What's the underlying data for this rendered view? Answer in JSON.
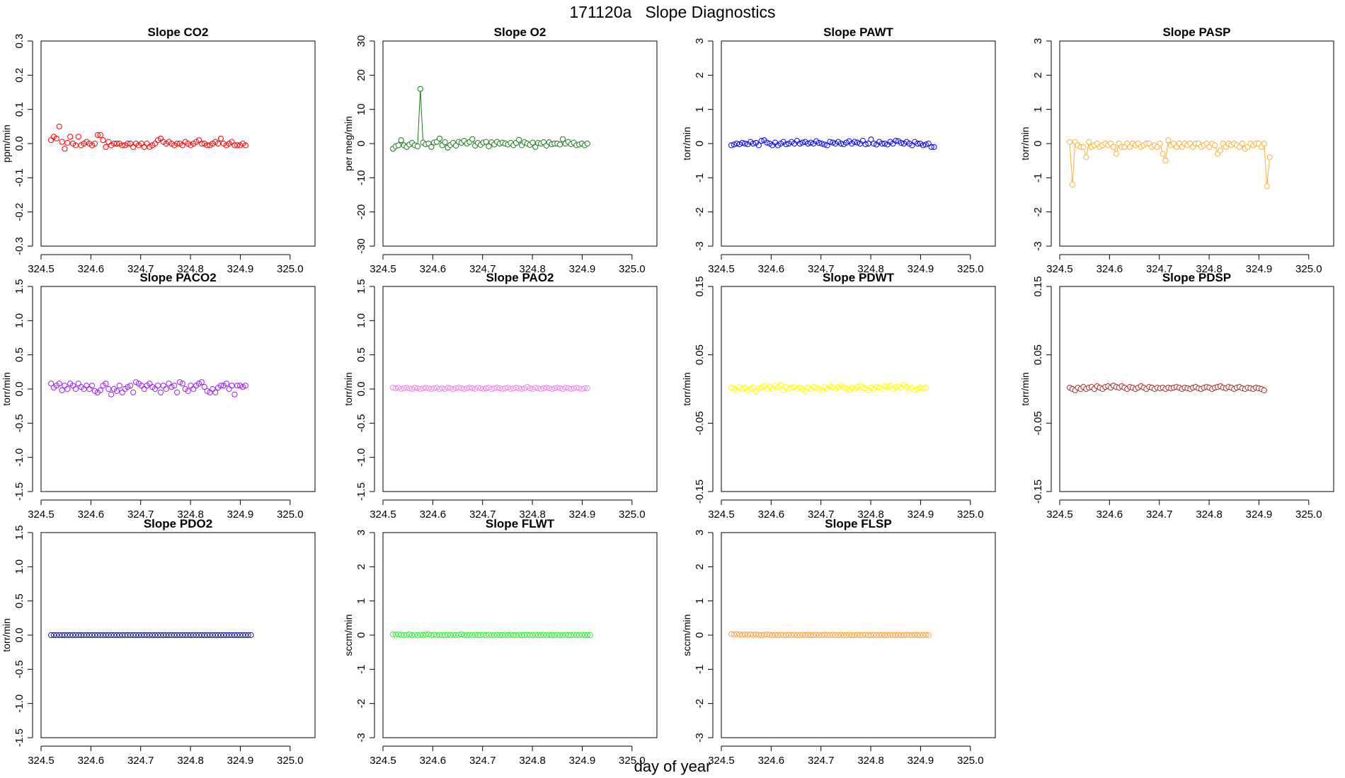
{
  "title": "171120a   Slope Diagnostics",
  "xlabel": "day of year",
  "chart_data": [
    {
      "type": "scatter",
      "title": "Slope CO2",
      "ylabel": "ppm/min",
      "color": "#ff0000",
      "xlim": [
        324.5,
        325.05
      ],
      "ylim": [
        -0.3,
        0.3
      ],
      "xticks": [
        324.5,
        324.6,
        324.7,
        324.8,
        324.9,
        325.0
      ],
      "xtick_labels": [
        "324.5",
        "324.6",
        "324.7",
        "324.8",
        "324.9",
        "325.0"
      ],
      "yticks": [
        -0.3,
        -0.2,
        -0.1,
        0.0,
        0.1,
        0.2,
        0.3
      ],
      "ytick_labels": [
        "-0.3",
        "-0.2",
        "-0.1",
        "0.0",
        "0.1",
        "0.2",
        "0.3"
      ],
      "connect": false,
      "x_start": 324.52,
      "x_step": 0.0055,
      "y": [
        0.01,
        0.02,
        0.015,
        0.05,
        0.005,
        -0.015,
        0.002,
        0.02,
        0.0,
        -0.005,
        0.02,
        -0.005,
        0.0,
        0.005,
        0.0,
        -0.005,
        0.0,
        0.025,
        0.025,
        0.01,
        -0.01,
        0.005,
        -0.005,
        0.0,
        0.0,
        0.0,
        -0.005,
        -0.005,
        0.0,
        0.0,
        -0.01,
        0.0,
        -0.005,
        0.0,
        -0.01,
        0.0,
        -0.01,
        -0.005,
        0.0,
        0.01,
        0.015,
        0.005,
        0.0,
        0.005,
        0.0,
        -0.005,
        0.0,
        0.0,
        -0.005,
        0.005,
        0.0,
        -0.005,
        0.0,
        0.005,
        0.01,
        0.0,
        0.0,
        -0.005,
        -0.005,
        0.0,
        0.005,
        0.0,
        0.015,
        0.0,
        -0.005,
        0.0,
        0.005,
        -0.005,
        -0.005,
        -0.005,
        0.0,
        -0.005
      ]
    },
    {
      "type": "scatter",
      "title": "Slope O2",
      "ylabel": "per meg/min",
      "color": "#1a7a1a",
      "xlim": [
        324.5,
        325.05
      ],
      "ylim": [
        -30,
        30
      ],
      "xticks": [
        324.5,
        324.6,
        324.7,
        324.8,
        324.9,
        325.0
      ],
      "xtick_labels": [
        "324.5",
        "324.6",
        "324.7",
        "324.8",
        "324.9",
        "325.0"
      ],
      "yticks": [
        -30,
        -20,
        -10,
        0,
        10,
        20,
        30
      ],
      "ytick_labels": [
        "-30",
        "-20",
        "-10",
        "0",
        "10",
        "20",
        "30"
      ],
      "connect": true,
      "x_start": 324.52,
      "x_step": 0.0055,
      "y": [
        -1.5,
        -0.8,
        -0.5,
        1.0,
        -0.5,
        -1.0,
        -0.3,
        0.2,
        -0.5,
        -0.8,
        16.0,
        0.3,
        -0.2,
        0.0,
        -1.0,
        0.3,
        0.5,
        1.5,
        -0.5,
        0.4,
        -1.2,
        -0.4,
        0.2,
        -0.6,
        0.5,
        0.2,
        0.8,
        0.0,
        0.5,
        1.3,
        -0.6,
        0.2,
        -0.4,
        0.3,
        0.5,
        -0.8,
        0.4,
        -0.3,
        0.5,
        0.0,
        0.3,
        0.0,
        -0.3,
        0.2,
        -0.5,
        0.2,
        1.1,
        -0.5,
        0.4,
        0.0,
        -0.4,
        0.3,
        -1.0,
        0.2,
        0.0,
        0.4,
        -0.6,
        0.4,
        -0.2,
        0.0,
        0.0,
        -0.3,
        1.3,
        0.0,
        0.5,
        -0.2,
        0.3,
        -0.5,
        -0.3,
        0.0,
        -0.5,
        0.0
      ]
    },
    {
      "type": "scatter",
      "title": "Slope PAWT",
      "ylabel": "torr/min",
      "color": "#0000ff",
      "xlim": [
        324.5,
        325.05
      ],
      "ylim": [
        -3,
        3
      ],
      "xticks": [
        324.5,
        324.6,
        324.7,
        324.8,
        324.9,
        325.0
      ],
      "xtick_labels": [
        "324.5",
        "324.6",
        "324.7",
        "324.8",
        "324.9",
        "325.0"
      ],
      "yticks": [
        -3,
        -2,
        -1,
        0,
        1,
        2,
        3
      ],
      "ytick_labels": [
        "-3",
        "-2",
        "-1",
        "0",
        "1",
        "2",
        "3"
      ],
      "connect": false,
      "x_start": 324.52,
      "x_step": 0.0055,
      "y": [
        -0.05,
        -0.03,
        0.0,
        -0.02,
        0.02,
        0.0,
        -0.02,
        0.05,
        0.0,
        0.02,
        -0.05,
        0.08,
        0.1,
        0.03,
        0.0,
        -0.05,
        0.03,
        -0.05,
        0.0,
        0.05,
        -0.02,
        0.0,
        0.05,
        0.0,
        0.08,
        0.0,
        0.03,
        0.05,
        0.0,
        0.03,
        0.0,
        0.07,
        0.02,
        0.0,
        -0.03,
        -0.05,
        0.05,
        0.03,
        0.0,
        0.05,
        0.0,
        -0.02,
        0.03,
        0.07,
        0.0,
        0.05,
        0.03,
        0.0,
        0.08,
        -0.02,
        0.0,
        0.12,
        0.0,
        -0.03,
        0.05,
        0.0,
        0.0,
        -0.03,
        0.05,
        0.0,
        0.08,
        0.07,
        0.02,
        0.0,
        0.05,
        0.0,
        -0.05,
        0.05,
        0.0,
        0.0,
        -0.05,
        -0.03,
        0.0,
        -0.1,
        -0.1
      ]
    },
    {
      "type": "scatter",
      "title": "Slope PASP",
      "ylabel": "torr/min",
      "color": "#ffb030",
      "xlim": [
        324.5,
        325.05
      ],
      "ylim": [
        -3,
        3
      ],
      "xticks": [
        324.5,
        324.6,
        324.7,
        324.8,
        324.9,
        325.0
      ],
      "xtick_labels": [
        "324.5",
        "324.6",
        "324.7",
        "324.8",
        "324.9",
        "325.0"
      ],
      "yticks": [
        -3,
        -2,
        -1,
        0,
        1,
        2,
        3
      ],
      "ytick_labels": [
        "-3",
        "-2",
        "-1",
        "0",
        "1",
        "2",
        "3"
      ],
      "connect": true,
      "x_start": 324.52,
      "x_step": 0.0055,
      "y": [
        0.05,
        -1.2,
        0.05,
        -0.05,
        -0.1,
        -0.1,
        -0.4,
        0.05,
        -0.1,
        -0.05,
        0.0,
        -0.1,
        -0.05,
        0.0,
        -0.05,
        0.0,
        -0.1,
        -0.3,
        0.0,
        -0.1,
        -0.1,
        0.0,
        -0.1,
        0.0,
        -0.05,
        0.0,
        -0.1,
        -0.05,
        0.0,
        0.0,
        -0.1,
        -0.05,
        -0.1,
        0.0,
        -0.3,
        -0.5,
        0.1,
        -0.05,
        0.0,
        -0.1,
        0.0,
        -0.1,
        0.0,
        -0.05,
        0.0,
        -0.1,
        0.0,
        0.0,
        -0.1,
        -0.05,
        0.0,
        -0.1,
        0.0,
        -0.05,
        -0.3,
        -0.2,
        0.0,
        -0.1,
        0.0,
        -0.05,
        0.0,
        -0.05,
        -0.1,
        0.0,
        -0.15,
        -0.1,
        0.0,
        -0.05,
        0.0,
        0.0,
        -0.1,
        0.0,
        -1.25,
        -0.4
      ]
    },
    {
      "type": "scatter",
      "title": "Slope PACO2",
      "ylabel": "torr/min",
      "color": "#a020f0",
      "xlim": [
        324.5,
        325.05
      ],
      "ylim": [
        -1.5,
        1.5
      ],
      "xticks": [
        324.5,
        324.6,
        324.7,
        324.8,
        324.9,
        325.0
      ],
      "xtick_labels": [
        "324.5",
        "324.6",
        "324.7",
        "324.8",
        "324.9",
        "325.0"
      ],
      "yticks": [
        -1.5,
        -1.0,
        -0.5,
        0.0,
        0.5,
        1.0,
        1.5
      ],
      "ytick_labels": [
        "-1.5",
        "-1.0",
        "-0.5",
        "0.0",
        "0.5",
        "1.0",
        "1.5"
      ],
      "connect": false,
      "x_start": 324.52,
      "x_step": 0.0055,
      "y": [
        0.08,
        0.02,
        0.05,
        0.08,
        -0.02,
        0.05,
        0.0,
        0.08,
        0.05,
        0.0,
        0.08,
        0.03,
        0.0,
        0.05,
        0.0,
        0.05,
        -0.03,
        -0.05,
        -0.02,
        0.05,
        0.08,
        0.0,
        -0.08,
        0.0,
        -0.03,
        0.05,
        -0.05,
        0.0,
        0.03,
        0.05,
        -0.05,
        0.1,
        0.08,
        0.05,
        0.0,
        0.05,
        0.08,
        0.03,
        0.0,
        0.05,
        -0.05,
        0.05,
        0.0,
        0.08,
        0.03,
        0.05,
        -0.05,
        0.1,
        0.08,
        0.0,
        -0.03,
        0.05,
        0.0,
        0.05,
        0.08,
        0.1,
        0.03,
        -0.03,
        -0.05,
        0.0,
        -0.05,
        0.02,
        0.05,
        0.05,
        0.08,
        0.0,
        0.05,
        -0.08,
        0.05,
        0.05,
        0.03,
        0.05
      ]
    },
    {
      "type": "scatter",
      "title": "Slope PAO2",
      "ylabel": "torr/min",
      "color": "#ee88ee",
      "xlim": [
        324.5,
        325.05
      ],
      "ylim": [
        -1.5,
        1.5
      ],
      "xticks": [
        324.5,
        324.6,
        324.7,
        324.8,
        324.9,
        325.0
      ],
      "xtick_labels": [
        "324.5",
        "324.6",
        "324.7",
        "324.8",
        "324.9",
        "325.0"
      ],
      "yticks": [
        -1.5,
        -1.0,
        -0.5,
        0.0,
        0.5,
        1.0,
        1.5
      ],
      "ytick_labels": [
        "-1.5",
        "-1.0",
        "-0.5",
        "0.0",
        "0.5",
        "1.0",
        "1.5"
      ],
      "connect": false,
      "x_start": 324.52,
      "x_step": 0.0055,
      "y": [
        0.02,
        0.01,
        0.02,
        0.0,
        0.01,
        0.02,
        0.01,
        0.0,
        0.02,
        0.01,
        0.0,
        0.01,
        0.02,
        0.01,
        0.0,
        0.01,
        0.02,
        0.0,
        0.01,
        0.0,
        0.02,
        0.01,
        0.0,
        0.01,
        0.02,
        0.01,
        0.0,
        0.01,
        0.02,
        0.01,
        0.0,
        0.02,
        0.01,
        0.0,
        0.01,
        0.02,
        0.0,
        0.01,
        0.02,
        0.01,
        0.0,
        0.01,
        0.02,
        0.0,
        0.01,
        0.02,
        0.01,
        0.0,
        0.01,
        0.03,
        0.01,
        0.0,
        0.02,
        0.01,
        0.0,
        0.01,
        0.02,
        0.01,
        0.0,
        0.01,
        0.02,
        0.01,
        0.0,
        0.02,
        0.01,
        0.0,
        0.01,
        0.02,
        0.01,
        0.0,
        0.01,
        0.01
      ]
    },
    {
      "type": "scatter",
      "title": "Slope PDWT",
      "ylabel": "torr/min",
      "color": "#ffff00",
      "xlim": [
        324.5,
        325.05
      ],
      "ylim": [
        -0.15,
        0.15
      ],
      "xticks": [
        324.5,
        324.6,
        324.7,
        324.8,
        324.9,
        325.0
      ],
      "xtick_labels": [
        "324.5",
        "324.6",
        "324.7",
        "324.8",
        "324.9",
        "325.0"
      ],
      "yticks": [
        -0.15,
        -0.05,
        0.05,
        0.15
      ],
      "ytick_labels": [
        "-0.15",
        "-0.05",
        "0.05",
        "0.15"
      ],
      "connect": false,
      "x_start": 324.52,
      "x_step": 0.0055,
      "y": [
        0.002,
        0.0,
        -0.002,
        0.003,
        0.0,
        0.002,
        -0.002,
        0.0,
        0.002,
        -0.003,
        0.0,
        0.002,
        0.004,
        0.0,
        0.003,
        0.0,
        0.005,
        0.003,
        0.006,
        -0.002,
        0.003,
        0.0,
        0.002,
        0.003,
        0.0,
        0.002,
        0.0,
        -0.003,
        0.002,
        0.0,
        0.003,
        0.002,
        0.0,
        -0.002,
        0.003,
        0.0,
        0.004,
        0.002,
        0.0,
        0.003,
        0.005,
        0.002,
        0.0,
        -0.002,
        0.002,
        0.0,
        0.003,
        0.004,
        0.002,
        0.0,
        -0.002,
        0.002,
        0.0,
        0.003,
        0.002,
        0.0,
        0.004,
        0.003,
        0.005,
        0.0,
        0.002,
        0.004,
        0.002,
        0.006,
        0.003,
        0.0,
        0.002,
        -0.002,
        0.0,
        0.002,
        0.001,
        0.002
      ]
    },
    {
      "type": "scatter",
      "title": "Slope PDSP",
      "ylabel": "torr/min",
      "color": "#a52a2a",
      "xlim": [
        324.5,
        325.05
      ],
      "ylim": [
        -0.15,
        0.15
      ],
      "xticks": [
        324.5,
        324.6,
        324.7,
        324.8,
        324.9,
        325.0
      ],
      "xtick_labels": [
        "324.5",
        "324.6",
        "324.7",
        "324.8",
        "324.9",
        "325.0"
      ],
      "yticks": [
        -0.15,
        -0.05,
        0.05,
        0.15
      ],
      "ytick_labels": [
        "-0.15",
        "-0.05",
        "0.05",
        "0.15"
      ],
      "connect": true,
      "x_start": 324.52,
      "x_step": 0.0055,
      "y": [
        0.002,
        0.0,
        -0.002,
        0.002,
        0.0,
        0.003,
        0.0,
        0.002,
        0.003,
        0.0,
        0.004,
        0.002,
        0.0,
        0.003,
        0.004,
        0.002,
        0.005,
        0.003,
        0.002,
        0.004,
        0.002,
        0.0,
        0.003,
        0.002,
        0.0,
        0.002,
        0.004,
        0.002,
        0.0,
        0.003,
        0.002,
        0.0,
        0.002,
        0.001,
        0.002,
        0.0,
        0.002,
        0.001,
        0.002,
        0.003,
        0.002,
        0.0,
        0.002,
        0.001,
        0.0,
        0.002,
        0.003,
        0.001,
        0.0,
        0.002,
        0.003,
        0.002,
        0.0,
        0.002,
        0.003,
        0.004,
        0.002,
        0.001,
        0.003,
        0.002,
        0.0,
        0.002,
        0.003,
        0.001,
        0.0,
        0.002,
        0.001,
        0.0,
        0.002,
        0.001,
        0.0,
        -0.002
      ]
    },
    {
      "type": "scatter",
      "title": "Slope PDO2",
      "ylabel": "torr/min",
      "color": "#1a1a8c",
      "xlim": [
        324.5,
        325.05
      ],
      "ylim": [
        -1.5,
        1.5
      ],
      "xticks": [
        324.5,
        324.6,
        324.7,
        324.8,
        324.9,
        325.0
      ],
      "xtick_labels": [
        "324.5",
        "324.6",
        "324.7",
        "324.8",
        "324.9",
        "325.0"
      ],
      "yticks": [
        -1.5,
        -1.0,
        -0.5,
        0.0,
        0.5,
        1.0,
        1.5
      ],
      "ytick_labels": [
        "-1.5",
        "-1.0",
        "-0.5",
        "0.0",
        "0.5",
        "1.0",
        "1.5"
      ],
      "connect": false,
      "x_start": 324.52,
      "x_step": 0.0055,
      "y": [
        0,
        0,
        0,
        0,
        0,
        0,
        0,
        0,
        0,
        0,
        0,
        0,
        0,
        0,
        0,
        0,
        0,
        0,
        0,
        0,
        0,
        0,
        0,
        0,
        0,
        0,
        0,
        0,
        0,
        0,
        0,
        0,
        0,
        0,
        0,
        0,
        0,
        0,
        0,
        0,
        0,
        0,
        0,
        0,
        0,
        0,
        0,
        0,
        0,
        0,
        0,
        0,
        0,
        0,
        0,
        0,
        0,
        0,
        0,
        0,
        0,
        0,
        0,
        0,
        0,
        0,
        0,
        0,
        0,
        0,
        0,
        0,
        0,
        0
      ]
    },
    {
      "type": "scatter",
      "title": "Slope FLWT",
      "ylabel": "sccm/min",
      "color": "#33ee33",
      "xlim": [
        324.5,
        325.05
      ],
      "ylim": [
        -3,
        3
      ],
      "xticks": [
        324.5,
        324.6,
        324.7,
        324.8,
        324.9,
        325.0
      ],
      "xtick_labels": [
        "324.5",
        "324.6",
        "324.7",
        "324.8",
        "324.9",
        "325.0"
      ],
      "yticks": [
        -3,
        -2,
        -1,
        0,
        1,
        2,
        3
      ],
      "ytick_labels": [
        "-3",
        "-2",
        "-1",
        "0",
        "1",
        "2",
        "3"
      ],
      "connect": false,
      "x_start": 324.52,
      "x_step": 0.0055,
      "y": [
        0.02,
        0.01,
        0.02,
        0.01,
        0.0,
        0.01,
        0.02,
        0.0,
        0.01,
        0.0,
        0.01,
        0.0,
        0.01,
        0.02,
        0.0,
        0.01,
        0.0,
        0.01,
        0.0,
        0.0,
        0.01,
        0.0,
        0.01,
        0.0,
        0.01,
        0.02,
        0.0,
        0.0,
        0.01,
        0.0,
        0.01,
        0.0,
        0.0,
        0.01,
        0.0,
        0.01,
        0.0,
        0.0,
        0.01,
        0.0,
        0.0,
        0.01,
        0.0,
        0.01,
        0.0,
        0.0,
        0.01,
        0.0,
        0.0,
        0.01,
        0.0,
        0.0,
        0.01,
        0.0,
        0.0,
        0.01,
        0.0,
        0.01,
        0.0,
        0.0,
        0.01,
        0.0,
        0.0,
        0.01,
        0.0,
        0.0,
        0.01,
        0.0,
        0.0,
        0.01,
        0.0,
        0.0,
        0.0
      ]
    },
    {
      "type": "scatter",
      "title": "Slope FLSP",
      "ylabel": "sccm/min",
      "color": "#ffa040",
      "xlim": [
        324.5,
        325.05
      ],
      "ylim": [
        -3,
        3
      ],
      "xticks": [
        324.5,
        324.6,
        324.7,
        324.8,
        324.9,
        325.0
      ],
      "xtick_labels": [
        "324.5",
        "324.6",
        "324.7",
        "324.8",
        "324.9",
        "325.0"
      ],
      "yticks": [
        -3,
        -2,
        -1,
        0,
        1,
        2,
        3
      ],
      "ytick_labels": [
        "-3",
        "-2",
        "-1",
        "0",
        "1",
        "2",
        "3"
      ],
      "connect": false,
      "x_start": 324.52,
      "x_step": 0.0055,
      "y": [
        0.03,
        0.02,
        0.03,
        0.02,
        0.01,
        0.02,
        0.01,
        0.02,
        0.01,
        0.02,
        0.01,
        0.0,
        0.01,
        0.02,
        0.01,
        0.0,
        0.01,
        0.0,
        0.01,
        0.0,
        0.0,
        0.01,
        0.0,
        0.01,
        0.0,
        0.0,
        0.01,
        0.0,
        0.01,
        0.0,
        0.0,
        0.01,
        0.0,
        0.0,
        0.01,
        0.0,
        0.0,
        0.01,
        0.0,
        0.0,
        0.01,
        0.0,
        0.0,
        0.01,
        0.0,
        0.0,
        0.01,
        0.0,
        0.0,
        0.01,
        0.0,
        0.0,
        0.01,
        0.0,
        0.0,
        0.01,
        0.0,
        0.0,
        0.01,
        0.0,
        0.0,
        0.01,
        0.0,
        0.0,
        0.01,
        0.0,
        0.0,
        0.01,
        0.0,
        0.0,
        0.0,
        0.01,
        0.0
      ]
    }
  ]
}
